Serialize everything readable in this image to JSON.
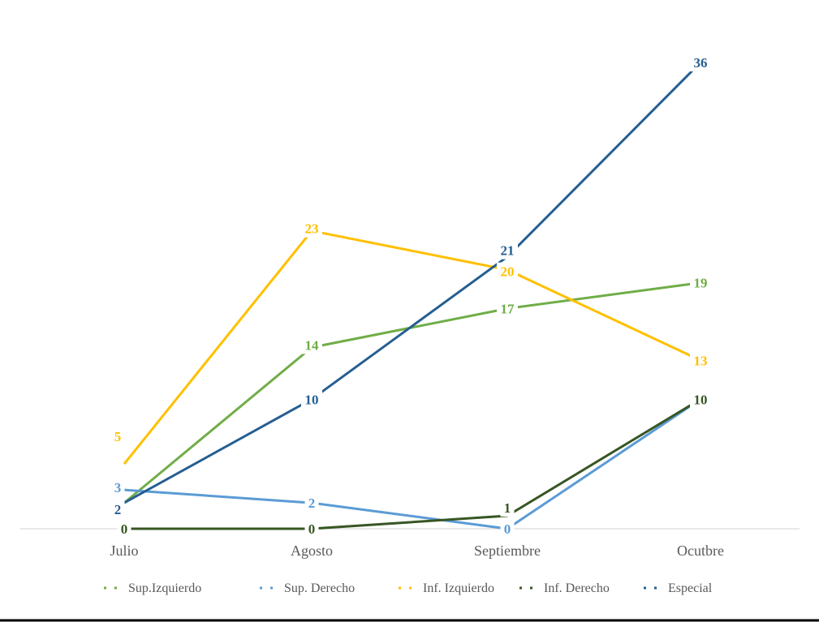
{
  "chart_data": {
    "type": "line",
    "title": "",
    "xlabel": "",
    "ylabel": "",
    "categories": [
      "Julio",
      "Agosto",
      "Septiembre",
      "Ocutbre"
    ],
    "ylim": [
      0,
      40
    ],
    "grid": false,
    "legend_position": "bottom",
    "data_labels": true,
    "series": [
      {
        "name": "Sup.Izquierdo",
        "color": "#70ad47",
        "values": [
          2,
          14,
          17,
          19
        ]
      },
      {
        "name": "Sup. Derecho",
        "color": "#5b9bd5",
        "values": [
          3,
          2,
          0,
          10
        ]
      },
      {
        "name": "Inf. Izquierdo",
        "color": "#ffc000",
        "values": [
          5,
          23,
          20,
          13
        ]
      },
      {
        "name": "Inf. Derecho",
        "color": "#375623",
        "values": [
          0,
          0,
          1,
          10
        ]
      },
      {
        "name": "Especial",
        "color": "#255e91",
        "values": [
          2,
          10,
          21,
          36
        ]
      }
    ]
  }
}
